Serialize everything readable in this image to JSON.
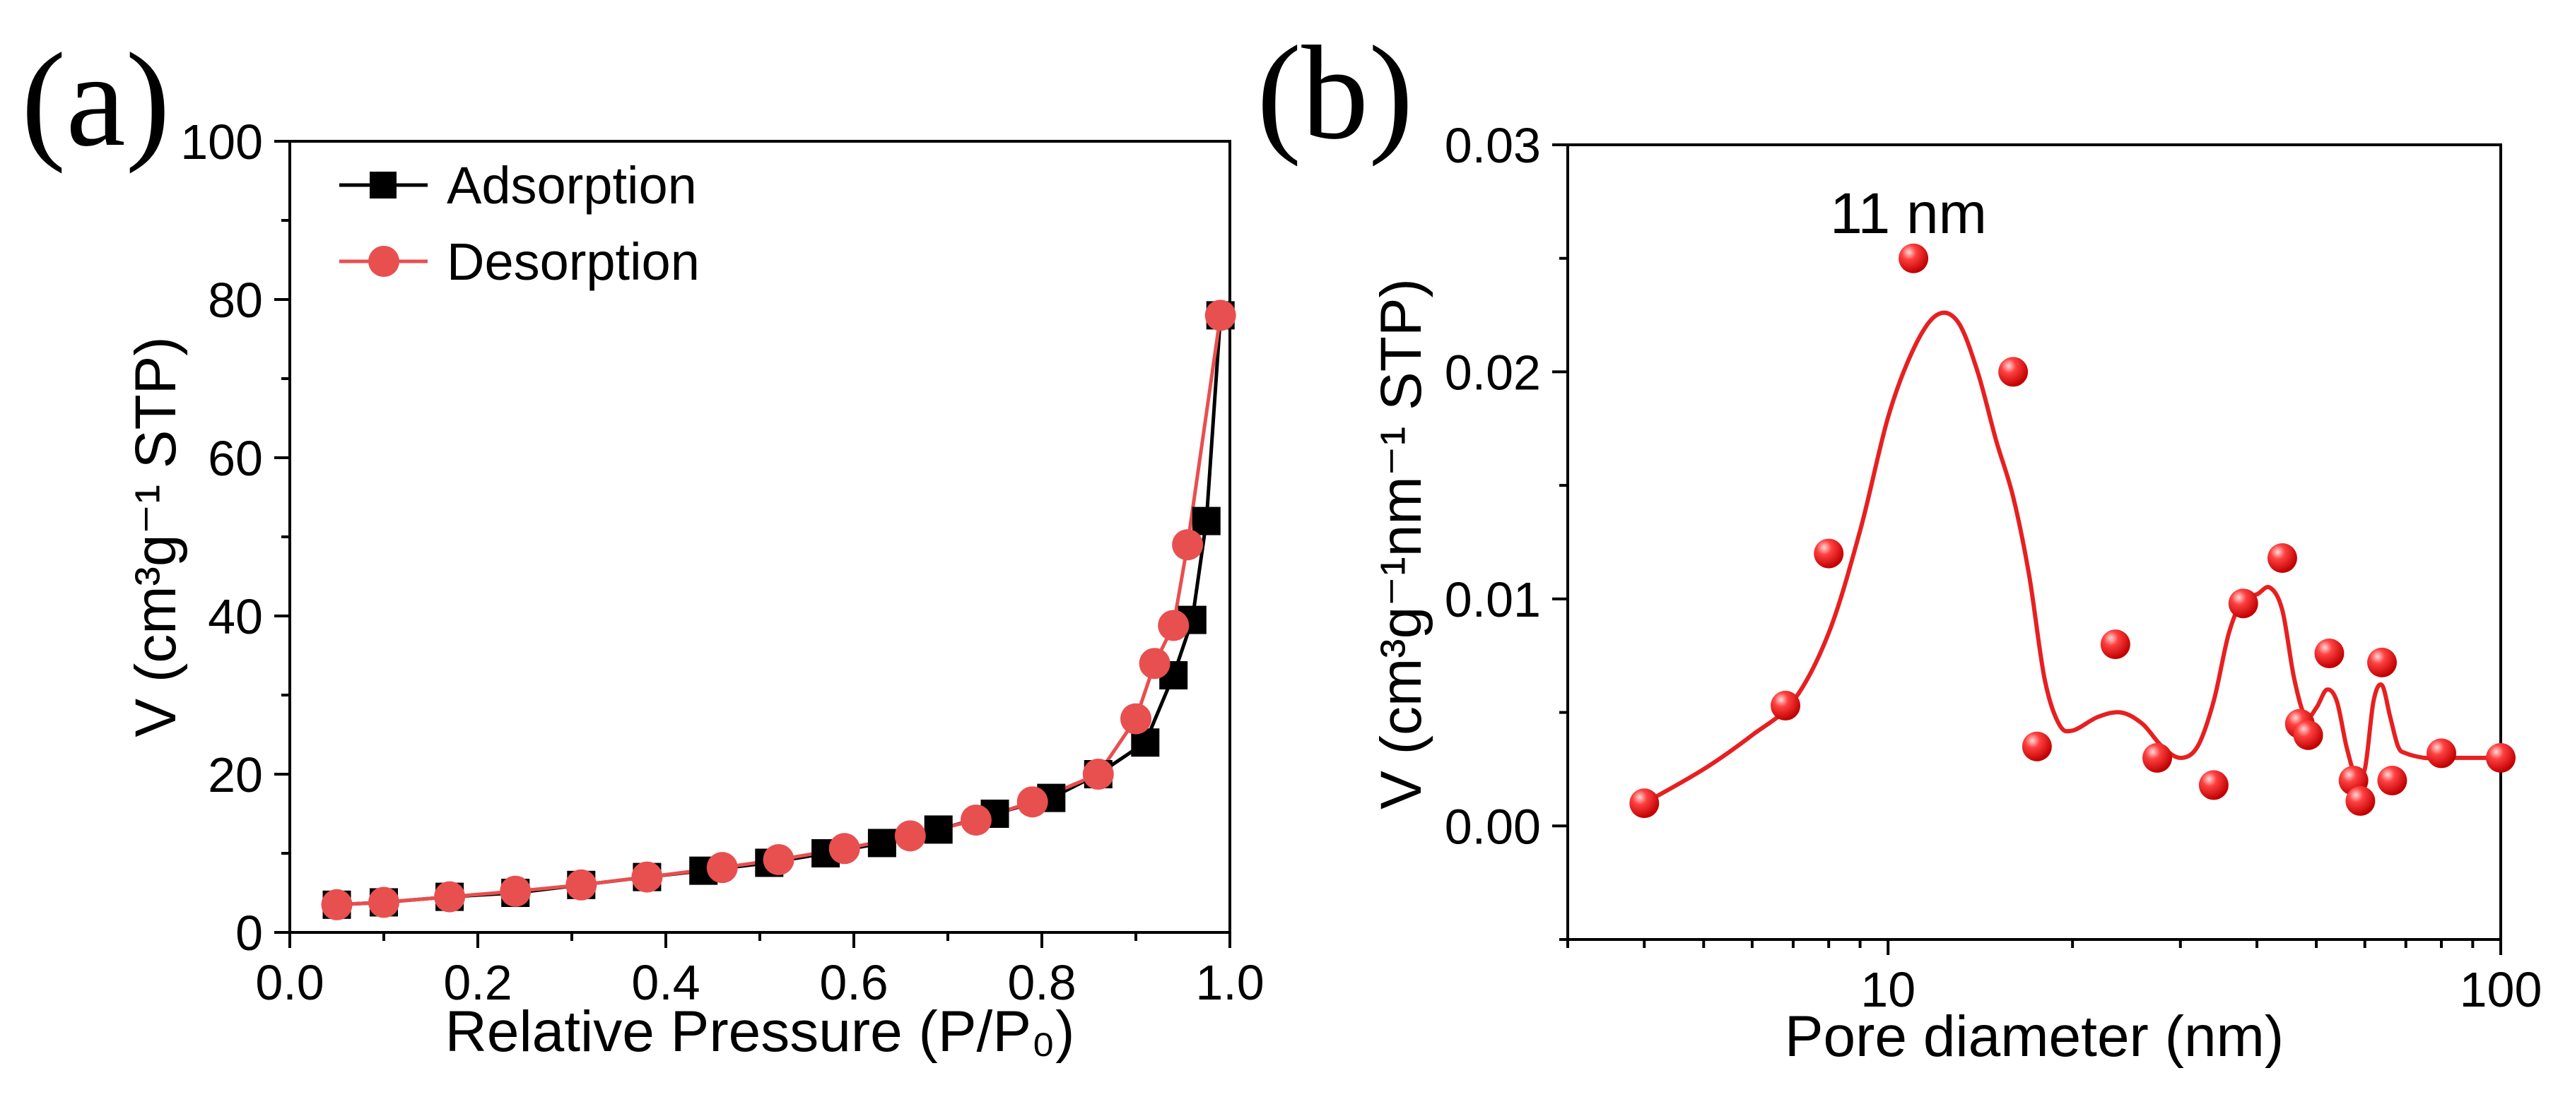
{
  "chart_data": [
    {
      "panel_label": "(a)",
      "type": "line",
      "xlabel": "Relative Pressure (P/P₀)",
      "ylabel": "V (cm³g⁻¹ STP)",
      "xlim": [
        0.0,
        1.0
      ],
      "ylim": [
        0,
        100
      ],
      "xticks": [
        "0.0",
        "0.2",
        "0.4",
        "0.6",
        "0.8",
        "1.0"
      ],
      "yticks": [
        "0",
        "20",
        "40",
        "60",
        "80",
        "100"
      ],
      "legend_position": "top-left",
      "series": [
        {
          "name": "Adsorption",
          "color": "#000000",
          "marker": "square",
          "x": [
            0.05,
            0.1,
            0.17,
            0.24,
            0.31,
            0.38,
            0.44,
            0.51,
            0.57,
            0.63,
            0.69,
            0.75,
            0.81,
            0.86,
            0.91,
            0.94,
            0.96,
            0.975,
            0.99
          ],
          "y": [
            3.5,
            3.8,
            4.5,
            5.0,
            6.0,
            7.0,
            7.8,
            8.8,
            10.0,
            11.3,
            13.0,
            15.0,
            17.0,
            20.0,
            24.0,
            32.5,
            39.5,
            52.0,
            78.0
          ]
        },
        {
          "name": "Desorption",
          "color": "#e84f4f",
          "marker": "circle",
          "x": [
            0.05,
            0.1,
            0.17,
            0.24,
            0.31,
            0.38,
            0.46,
            0.52,
            0.59,
            0.66,
            0.73,
            0.79,
            0.86,
            0.9,
            0.92,
            0.94,
            0.955,
            0.99
          ],
          "y": [
            3.5,
            3.8,
            4.5,
            5.2,
            6.0,
            7.0,
            8.2,
            9.2,
            10.6,
            12.2,
            14.2,
            16.5,
            20.0,
            27.0,
            34.0,
            38.8,
            49.0,
            78.0
          ]
        }
      ]
    },
    {
      "panel_label": "(b)",
      "type": "scatter",
      "xlabel": "Pore diameter (nm)",
      "ylabel": "V (cm³g⁻¹nm⁻¹ STP)",
      "xscale": "log",
      "xlim": [
        3,
        100
      ],
      "ylim": [
        -0.005,
        0.03
      ],
      "xticks": [
        "10",
        "100"
      ],
      "yticks": [
        "0.00",
        "0.01",
        "0.02",
        "0.03"
      ],
      "annotation": "11 nm",
      "series": [
        {
          "name": "data points",
          "color": "#e62020",
          "marker": "sphere",
          "x": [
            4,
            6.8,
            8,
            11,
            16,
            17.5,
            23.5,
            27.5,
            34,
            38,
            44,
            47,
            48.5,
            52.5,
            57.5,
            59,
            64,
            66.5,
            80,
            100
          ],
          "y": [
            0.001,
            0.0053,
            0.012,
            0.025,
            0.02,
            0.0035,
            0.008,
            0.003,
            0.0018,
            0.0098,
            0.0118,
            0.0045,
            0.004,
            0.0076,
            0.002,
            0.0011,
            0.0072,
            0.002,
            0.0032,
            0.003
          ]
        },
        {
          "name": "fit curve",
          "color": "#e62020",
          "x": [
            4,
            5,
            6,
            7,
            8,
            9,
            10,
            11,
            12,
            13,
            14,
            15,
            16,
            17,
            18,
            19,
            20,
            22,
            24,
            26,
            28,
            30,
            32,
            34,
            36,
            38,
            40,
            42,
            44,
            46,
            48,
            50,
            52,
            54,
            56,
            58,
            60,
            62,
            64,
            66,
            68,
            70,
            75,
            80,
            90,
            100
          ],
          "y": [
            0.001,
            0.0025,
            0.004,
            0.0055,
            0.0085,
            0.013,
            0.018,
            0.021,
            0.0225,
            0.0222,
            0.02,
            0.017,
            0.0145,
            0.011,
            0.0065,
            0.0045,
            0.0042,
            0.0048,
            0.005,
            0.0045,
            0.0035,
            0.003,
            0.0035,
            0.0055,
            0.0085,
            0.01,
            0.0102,
            0.0105,
            0.0095,
            0.0065,
            0.0048,
            0.0052,
            0.006,
            0.0055,
            0.0035,
            0.0022,
            0.0025,
            0.0055,
            0.0062,
            0.0048,
            0.0035,
            0.0032,
            0.003,
            0.003,
            0.003,
            0.003
          ]
        }
      ]
    }
  ]
}
